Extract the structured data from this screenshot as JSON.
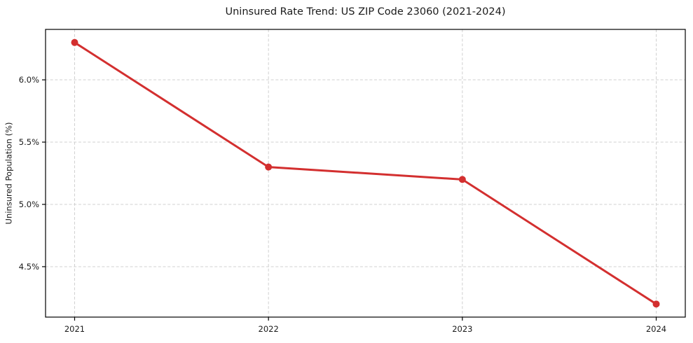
{
  "chart_data": {
    "type": "line",
    "title": "Uninsured Rate Trend: US ZIP Code 23060 (2021-2024)",
    "xlabel": "",
    "ylabel": "Uninsured Population (%)",
    "x": [
      2021,
      2022,
      2023,
      2024
    ],
    "series": [
      {
        "values": [
          6.3,
          5.3,
          5.2,
          4.2
        ]
      }
    ],
    "xticks": [
      2021,
      2022,
      2023,
      2024
    ],
    "xtick_labels": [
      "2021",
      "2022",
      "2023",
      "2024"
    ],
    "yticks": [
      4.5,
      5.0,
      5.5,
      6.0
    ],
    "ytick_labels": [
      "4.5%",
      "5.0%",
      "5.5%",
      "6.0%"
    ],
    "xlim": [
      2020.85,
      2024.15
    ],
    "ylim": [
      4.095,
      6.405
    ],
    "grid": true,
    "grid_style": "dashed",
    "legend": "none",
    "marker": "circle",
    "colors": {
      "line": "#d32f2f",
      "marker": "#d32f2f",
      "grid": "#d0d0d0",
      "axis": "#000000",
      "background": "#ffffff"
    }
  }
}
